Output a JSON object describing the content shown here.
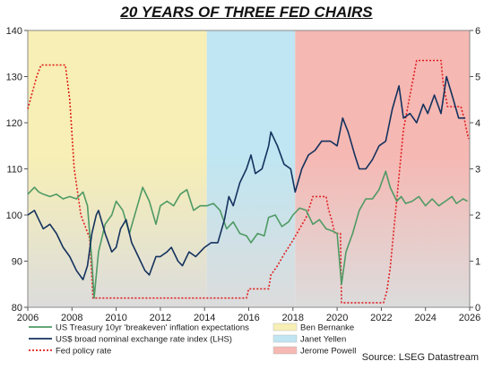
{
  "chart_data": {
    "type": "line",
    "title": "20 YEARS OF THREE FED CHAIRS",
    "source": "Source: LSEG Datastream",
    "x_ticks": [
      "2006",
      "2008",
      "2010",
      "2012",
      "2014",
      "2016",
      "2018",
      "2020",
      "2022",
      "2024",
      "2026"
    ],
    "xlim": [
      2006,
      2026
    ],
    "ylim_left": [
      80,
      140
    ],
    "ylim_right": [
      0,
      6
    ],
    "y_ticks_left": [
      "80",
      "90",
      "100",
      "110",
      "120",
      "130",
      "140"
    ],
    "y_ticks_right": [
      "0",
      "1",
      "2",
      "3",
      "4",
      "5",
      "6"
    ],
    "grid": false,
    "regimes": [
      {
        "name": "Ben Bernanke",
        "start": 2006.0,
        "end": 2014.1,
        "color": "#f7efb5"
      },
      {
        "name": "Janet Yellen",
        "start": 2014.1,
        "end": 2018.1,
        "color": "#bfe6f2"
      },
      {
        "name": "Jerome Powell",
        "start": 2018.1,
        "end": 2026.0,
        "color": "#f6b8b3"
      }
    ],
    "lower_band_color": "#dcdcdc",
    "legend": [
      {
        "label": "US Treasury 10yr 'breakeven' inflation expectations",
        "kind": "line",
        "color": "#4f9a64"
      },
      {
        "label": "US$ broad nominal exchange rate index (LHS)",
        "kind": "line",
        "color": "#14325e"
      },
      {
        "label": "Fed policy rate",
        "kind": "dotted",
        "color": "#e02020"
      },
      {
        "label": "Ben Bernanke",
        "kind": "swatch",
        "color": "#f7efb5"
      },
      {
        "label": "Janet Yellen",
        "kind": "swatch",
        "color": "#bfe6f2"
      },
      {
        "label": "Jerome Powell",
        "kind": "swatch",
        "color": "#f6b8b3"
      }
    ],
    "series": [
      {
        "name": "US$ broad nominal exchange rate index (LHS)",
        "axis": "left",
        "color": "#14325e",
        "points": [
          [
            2006.0,
            100
          ],
          [
            2006.3,
            101
          ],
          [
            2006.5,
            99
          ],
          [
            2006.7,
            97
          ],
          [
            2007.0,
            98
          ],
          [
            2007.3,
            96
          ],
          [
            2007.6,
            93
          ],
          [
            2007.9,
            91
          ],
          [
            2008.2,
            88
          ],
          [
            2008.5,
            86
          ],
          [
            2008.7,
            89
          ],
          [
            2008.9,
            96
          ],
          [
            2009.1,
            100
          ],
          [
            2009.2,
            101
          ],
          [
            2009.5,
            96
          ],
          [
            2009.8,
            92
          ],
          [
            2010.0,
            93
          ],
          [
            2010.2,
            97
          ],
          [
            2010.45,
            99
          ],
          [
            2010.7,
            94
          ],
          [
            2011.0,
            91
          ],
          [
            2011.3,
            88
          ],
          [
            2011.5,
            87
          ],
          [
            2011.8,
            91
          ],
          [
            2012.0,
            91
          ],
          [
            2012.3,
            92
          ],
          [
            2012.5,
            93
          ],
          [
            2012.8,
            90
          ],
          [
            2013.0,
            89
          ],
          [
            2013.3,
            92
          ],
          [
            2013.6,
            91
          ],
          [
            2014.0,
            93
          ],
          [
            2014.3,
            94
          ],
          [
            2014.6,
            94
          ],
          [
            2014.9,
            99
          ],
          [
            2015.1,
            104
          ],
          [
            2015.3,
            102
          ],
          [
            2015.6,
            107
          ],
          [
            2015.9,
            110
          ],
          [
            2016.1,
            113
          ],
          [
            2016.3,
            109
          ],
          [
            2016.6,
            110
          ],
          [
            2016.9,
            115
          ],
          [
            2017.0,
            118
          ],
          [
            2017.3,
            115
          ],
          [
            2017.6,
            111
          ],
          [
            2017.9,
            110
          ],
          [
            2018.1,
            105
          ],
          [
            2018.4,
            110
          ],
          [
            2018.7,
            113
          ],
          [
            2019.0,
            114
          ],
          [
            2019.3,
            116
          ],
          [
            2019.7,
            116
          ],
          [
            2020.0,
            115
          ],
          [
            2020.25,
            121
          ],
          [
            2020.5,
            118
          ],
          [
            2020.8,
            113
          ],
          [
            2021.0,
            110
          ],
          [
            2021.3,
            110
          ],
          [
            2021.6,
            112
          ],
          [
            2021.9,
            115
          ],
          [
            2022.2,
            116
          ],
          [
            2022.5,
            123
          ],
          [
            2022.8,
            128
          ],
          [
            2023.0,
            121
          ],
          [
            2023.3,
            122
          ],
          [
            2023.6,
            120
          ],
          [
            2023.9,
            124
          ],
          [
            2024.1,
            122
          ],
          [
            2024.4,
            126
          ],
          [
            2024.7,
            122
          ],
          [
            2024.95,
            130
          ],
          [
            2025.2,
            126
          ],
          [
            2025.5,
            121
          ],
          [
            2025.8,
            121
          ]
        ]
      },
      {
        "name": "US Treasury 10yr 'breakeven' inflation expectations",
        "axis": "right",
        "color": "#4f9a64",
        "points": [
          [
            2006.0,
            2.45
          ],
          [
            2006.3,
            2.6
          ],
          [
            2006.5,
            2.5
          ],
          [
            2006.7,
            2.45
          ],
          [
            2007.0,
            2.4
          ],
          [
            2007.3,
            2.45
          ],
          [
            2007.6,
            2.35
          ],
          [
            2007.9,
            2.4
          ],
          [
            2008.2,
            2.35
          ],
          [
            2008.5,
            2.5
          ],
          [
            2008.7,
            2.2
          ],
          [
            2008.9,
            1.0
          ],
          [
            2009.0,
            0.2
          ],
          [
            2009.2,
            1.2
          ],
          [
            2009.5,
            1.8
          ],
          [
            2009.8,
            2.0
          ],
          [
            2010.0,
            2.3
          ],
          [
            2010.3,
            2.1
          ],
          [
            2010.6,
            1.6
          ],
          [
            2010.9,
            2.1
          ],
          [
            2011.2,
            2.6
          ],
          [
            2011.5,
            2.3
          ],
          [
            2011.8,
            1.8
          ],
          [
            2012.0,
            2.2
          ],
          [
            2012.3,
            2.3
          ],
          [
            2012.6,
            2.2
          ],
          [
            2012.9,
            2.45
          ],
          [
            2013.2,
            2.55
          ],
          [
            2013.5,
            2.1
          ],
          [
            2013.8,
            2.2
          ],
          [
            2014.1,
            2.2
          ],
          [
            2014.4,
            2.25
          ],
          [
            2014.7,
            2.1
          ],
          [
            2015.0,
            1.7
          ],
          [
            2015.3,
            1.85
          ],
          [
            2015.6,
            1.6
          ],
          [
            2015.9,
            1.55
          ],
          [
            2016.1,
            1.4
          ],
          [
            2016.4,
            1.6
          ],
          [
            2016.7,
            1.55
          ],
          [
            2016.9,
            1.95
          ],
          [
            2017.2,
            2.0
          ],
          [
            2017.5,
            1.75
          ],
          [
            2017.8,
            1.85
          ],
          [
            2018.0,
            2.0
          ],
          [
            2018.3,
            2.15
          ],
          [
            2018.6,
            2.1
          ],
          [
            2018.9,
            1.8
          ],
          [
            2019.2,
            1.9
          ],
          [
            2019.5,
            1.7
          ],
          [
            2019.8,
            1.65
          ],
          [
            2020.0,
            1.6
          ],
          [
            2020.2,
            0.5
          ],
          [
            2020.4,
            1.2
          ],
          [
            2020.7,
            1.6
          ],
          [
            2021.0,
            2.1
          ],
          [
            2021.3,
            2.35
          ],
          [
            2021.6,
            2.35
          ],
          [
            2021.9,
            2.55
          ],
          [
            2022.2,
            2.95
          ],
          [
            2022.4,
            2.6
          ],
          [
            2022.7,
            2.3
          ],
          [
            2022.9,
            2.4
          ],
          [
            2023.1,
            2.25
          ],
          [
            2023.4,
            2.3
          ],
          [
            2023.7,
            2.4
          ],
          [
            2024.0,
            2.2
          ],
          [
            2024.3,
            2.35
          ],
          [
            2024.6,
            2.2
          ],
          [
            2024.9,
            2.3
          ],
          [
            2025.2,
            2.4
          ],
          [
            2025.4,
            2.25
          ],
          [
            2025.7,
            2.35
          ],
          [
            2025.9,
            2.3
          ]
        ]
      },
      {
        "name": "Fed policy rate",
        "axis": "right",
        "color": "#e02020",
        "dashed": true,
        "points": [
          [
            2006.0,
            4.3
          ],
          [
            2006.4,
            5.0
          ],
          [
            2006.6,
            5.25
          ],
          [
            2007.7,
            5.25
          ],
          [
            2007.9,
            4.5
          ],
          [
            2008.1,
            3.0
          ],
          [
            2008.4,
            2.0
          ],
          [
            2008.8,
            1.5
          ],
          [
            2008.95,
            0.2
          ],
          [
            2015.9,
            0.2
          ],
          [
            2016.0,
            0.4
          ],
          [
            2016.9,
            0.4
          ],
          [
            2017.0,
            0.7
          ],
          [
            2017.3,
            0.9
          ],
          [
            2017.6,
            1.15
          ],
          [
            2018.0,
            1.45
          ],
          [
            2018.3,
            1.7
          ],
          [
            2018.6,
            1.95
          ],
          [
            2018.9,
            2.4
          ],
          [
            2019.5,
            2.4
          ],
          [
            2019.6,
            2.15
          ],
          [
            2019.75,
            1.9
          ],
          [
            2019.9,
            1.6
          ],
          [
            2020.15,
            1.6
          ],
          [
            2020.2,
            0.1
          ],
          [
            2022.1,
            0.1
          ],
          [
            2022.25,
            0.35
          ],
          [
            2022.4,
            0.85
          ],
          [
            2022.55,
            1.6
          ],
          [
            2022.7,
            2.35
          ],
          [
            2022.85,
            3.1
          ],
          [
            2023.0,
            3.85
          ],
          [
            2023.2,
            4.35
          ],
          [
            2023.4,
            4.85
          ],
          [
            2023.6,
            5.35
          ],
          [
            2024.7,
            5.35
          ],
          [
            2024.8,
            4.85
          ],
          [
            2024.9,
            4.6
          ],
          [
            2025.0,
            4.35
          ],
          [
            2025.6,
            4.35
          ],
          [
            2025.75,
            4.1
          ],
          [
            2025.85,
            3.85
          ],
          [
            2025.95,
            3.65
          ]
        ]
      }
    ]
  }
}
